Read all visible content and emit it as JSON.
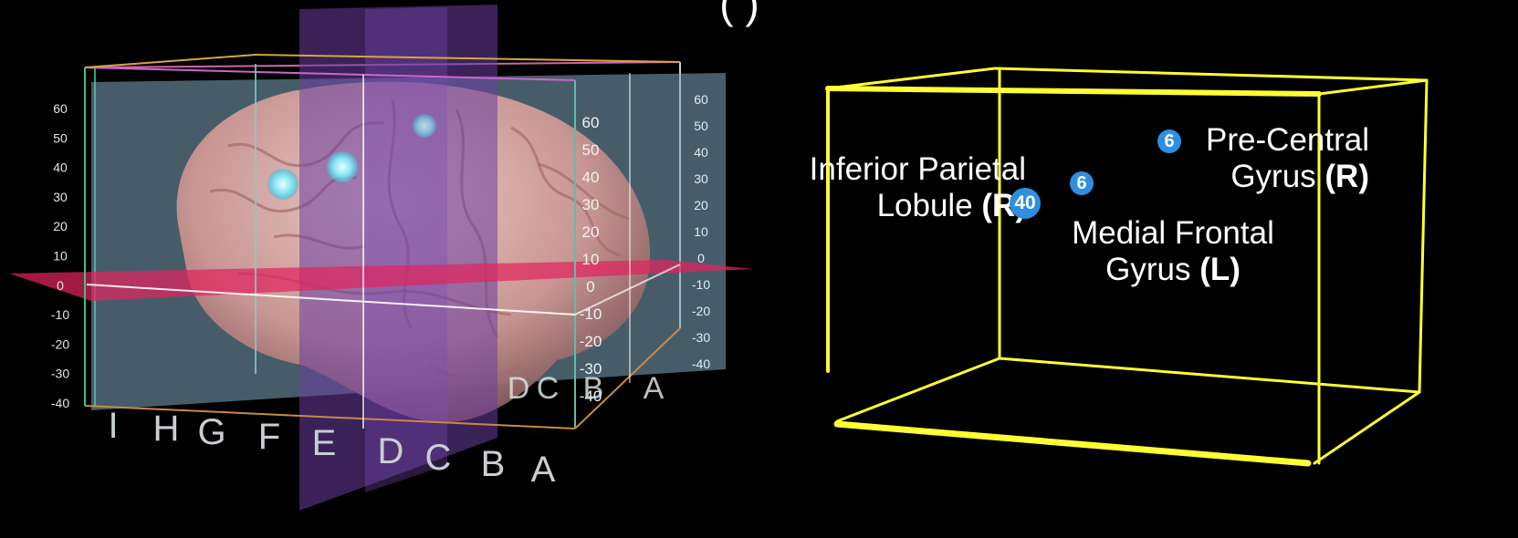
{
  "top_title": "(                                        )",
  "brain_panel": {
    "y_scale_left": [
      "60",
      "50",
      "40",
      "30",
      "20",
      "10",
      "0",
      "-10",
      "-20",
      "-30",
      "-40"
    ],
    "y_scale_mid": [
      "60",
      "50",
      "40",
      "30",
      "20",
      "10",
      "0",
      "-10",
      "-20",
      "-30",
      "-40"
    ],
    "y_scale_right": [
      "60",
      "50",
      "40",
      "30",
      "20",
      "10",
      "0",
      "-10",
      "-20",
      "-30",
      "-40"
    ],
    "front_letters": [
      "I",
      "H",
      "G",
      "F",
      "E",
      "D",
      "C",
      "B",
      "A"
    ],
    "back_letters": [
      "D",
      "C",
      "B",
      "A"
    ]
  },
  "box_panel": {
    "regions": [
      {
        "line1": "Inferior Parietal",
        "line2_text": "Lobule",
        "line2_side": "(R)",
        "badge": "40"
      },
      {
        "line1": "Pre-Central",
        "line2_text": "Gyrus",
        "line2_side": "(R)",
        "badge": "6"
      },
      {
        "line1": "Medial Frontal",
        "line2_text": "Gyrus",
        "line2_side": "(L)",
        "badge": "6"
      }
    ]
  },
  "colors": {
    "box_outline": "#ffff33",
    "badge": "#2e8fe0",
    "axial_plane": "#e0245e",
    "coronal_plane": "#6a3ea1",
    "sagittal_plane": "#7fa9bf"
  }
}
